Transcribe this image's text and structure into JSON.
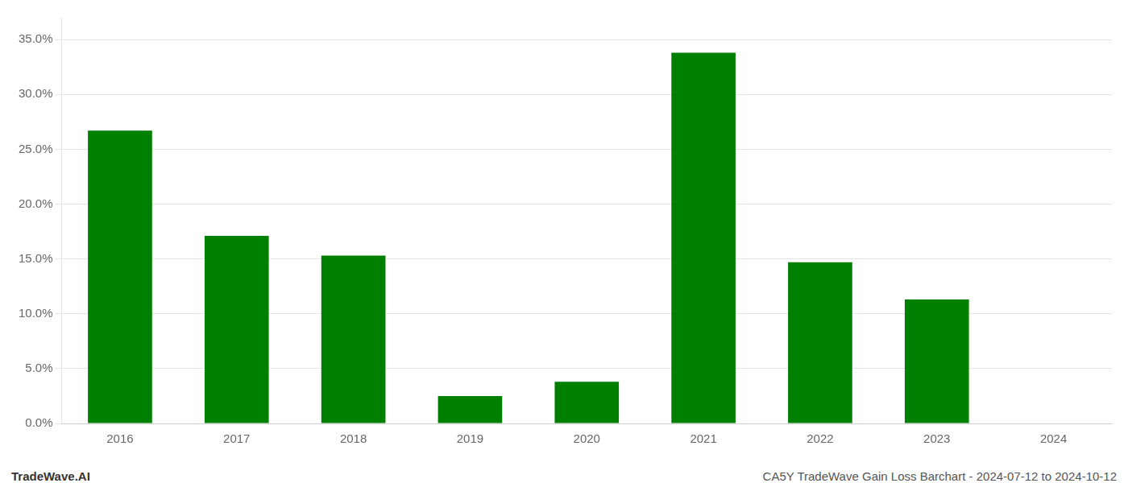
{
  "chart_data": {
    "type": "bar",
    "categories": [
      "2016",
      "2017",
      "2018",
      "2019",
      "2020",
      "2021",
      "2022",
      "2023",
      "2024"
    ],
    "values": [
      0.267,
      0.171,
      0.153,
      0.025,
      0.038,
      0.338,
      0.147,
      0.113,
      0.0
    ],
    "color": "#008000",
    "ylim": [
      0,
      0.37
    ],
    "yticks": [
      {
        "value": 0.0,
        "label": "0.0%"
      },
      {
        "value": 0.05,
        "label": "5.0%"
      },
      {
        "value": 0.1,
        "label": "10.0%"
      },
      {
        "value": 0.15,
        "label": "15.0%"
      },
      {
        "value": 0.2,
        "label": "20.0%"
      },
      {
        "value": 0.25,
        "label": "25.0%"
      },
      {
        "value": 0.3,
        "label": "30.0%"
      },
      {
        "value": 0.35,
        "label": "35.0%"
      }
    ],
    "grid": true,
    "annotations": [
      "TradeWave.AI",
      "CA5Y TradeWave Gain Loss Barchart - 2024-07-12 to 2024-10-12"
    ]
  }
}
